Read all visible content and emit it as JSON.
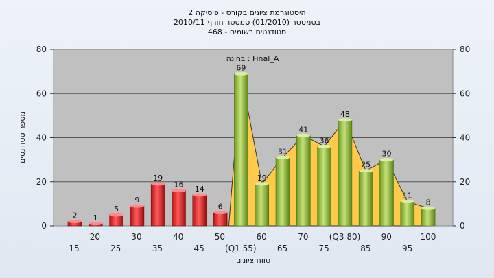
{
  "chart_data": {
    "type": "bar",
    "title_lines": [
      "היסטוגרמת ציונים בקורס - פיסיקה 2",
      "בסמסטר  (01/2010)  סמסטר חורף  2010/11",
      "סטודנטים רשומים - 468"
    ],
    "series_label": "בחינה : Final_A",
    "xlabel": "טווח ציונים",
    "ylabel": "מספר סטודנטים",
    "ylim": [
      0,
      80
    ],
    "yticks": [
      0,
      20,
      40,
      60,
      80
    ],
    "grid": true,
    "x_labels_upper": [
      "20",
      "30",
      "40",
      "50",
      "60",
      "70",
      "(Q3 80)",
      "90",
      "100"
    ],
    "x_labels_lower": [
      "15",
      "25",
      "35",
      "45",
      "(Q1 55)",
      "65",
      "75",
      "85",
      "95"
    ],
    "values": [
      2,
      1,
      5,
      9,
      19,
      16,
      14,
      6,
      69,
      19,
      31,
      41,
      36,
      48,
      25,
      30,
      11,
      8
    ],
    "colors": {
      "fail": "#e03131",
      "pass": "#94c43c",
      "area": "#ffc94a",
      "plot_bg": "#c0c0c0"
    }
  }
}
